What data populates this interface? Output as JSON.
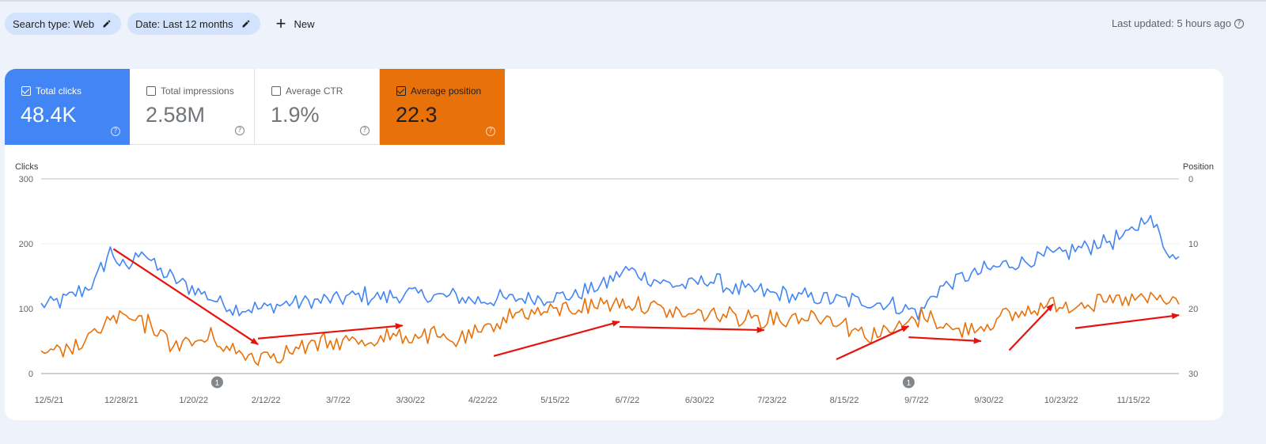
{
  "toolbar": {
    "search_type_label": "Search type: Web",
    "date_label": "Date: Last 12 months",
    "new_label": "New",
    "last_updated": "Last updated: 5 hours ago"
  },
  "metrics": [
    {
      "label": "Total clicks",
      "value": "48.4K",
      "checked": true,
      "color": "#4285f4"
    },
    {
      "label": "Total impressions",
      "value": "2.58M",
      "checked": false
    },
    {
      "label": "Average CTR",
      "value": "1.9%",
      "checked": false
    },
    {
      "label": "Average position",
      "value": "22.3",
      "checked": true,
      "color": "#e8710a"
    }
  ],
  "chart_data": {
    "type": "line",
    "left_axis_label": "Clicks",
    "right_axis_label": "Position",
    "left_ylim": [
      0,
      300
    ],
    "left_ticks": [
      "0",
      "100",
      "200",
      "300"
    ],
    "right_ylim": [
      30,
      0
    ],
    "right_ticks": [
      "0",
      "10",
      "20",
      "30"
    ],
    "x_tick_labels": [
      "12/5/21",
      "12/28/21",
      "1/20/22",
      "2/12/22",
      "3/7/22",
      "3/30/22",
      "4/22/22",
      "5/15/22",
      "6/7/22",
      "6/30/22",
      "7/23/22",
      "8/15/22",
      "9/7/22",
      "9/30/22",
      "10/23/22",
      "11/15/22"
    ],
    "annotations": [
      {
        "label": "1",
        "date_index": 56
      },
      {
        "label": "1",
        "date_index": 276
      }
    ],
    "grid": true,
    "series": [
      {
        "name": "Total clicks",
        "axis": "left",
        "color": "#4285f4",
        "x_start": "12/5/21",
        "x_end": "12/2/22",
        "points_per_day": 1,
        "keyframes": [
          [
            0,
            105
          ],
          [
            5,
            110
          ],
          [
            10,
            120
          ],
          [
            17,
            140
          ],
          [
            22,
            190
          ],
          [
            27,
            155
          ],
          [
            32,
            195
          ],
          [
            37,
            160
          ],
          [
            42,
            145
          ],
          [
            47,
            135
          ],
          [
            52,
            122
          ],
          [
            57,
            110
          ],
          [
            62,
            100
          ],
          [
            70,
            100
          ],
          [
            80,
            110
          ],
          [
            90,
            112
          ],
          [
            100,
            120
          ],
          [
            110,
            118
          ],
          [
            120,
            122
          ],
          [
            130,
            118
          ],
          [
            140,
            112
          ],
          [
            150,
            115
          ],
          [
            160,
            118
          ],
          [
            170,
            120
          ],
          [
            180,
            140
          ],
          [
            186,
            160
          ],
          [
            192,
            150
          ],
          [
            198,
            140
          ],
          [
            205,
            135
          ],
          [
            212,
            145
          ],
          [
            220,
            130
          ],
          [
            230,
            125
          ],
          [
            240,
            118
          ],
          [
            250,
            115
          ],
          [
            260,
            112
          ],
          [
            268,
            108
          ],
          [
            275,
            100
          ],
          [
            280,
            95
          ],
          [
            285,
            130
          ],
          [
            295,
            150
          ],
          [
            305,
            165
          ],
          [
            315,
            175
          ],
          [
            325,
            185
          ],
          [
            335,
            200
          ],
          [
            345,
            210
          ],
          [
            352,
            245
          ],
          [
            357,
            200
          ],
          [
            361,
            175
          ]
        ]
      },
      {
        "name": "Average position",
        "axis": "right",
        "color": "#e8710a",
        "x_start": "12/5/21",
        "x_end": "12/2/22",
        "points_per_day": 1,
        "keyframes": [
          [
            0,
            27.5
          ],
          [
            5,
            27
          ],
          [
            10,
            26
          ],
          [
            15,
            25
          ],
          [
            20,
            22
          ],
          [
            25,
            21.5
          ],
          [
            30,
            22
          ],
          [
            35,
            22.5
          ],
          [
            40,
            25
          ],
          [
            45,
            25.5
          ],
          [
            50,
            25
          ],
          [
            55,
            24.5
          ],
          [
            60,
            26.5
          ],
          [
            65,
            27.2
          ],
          [
            70,
            27
          ],
          [
            80,
            26.5
          ],
          [
            90,
            25.5
          ],
          [
            100,
            25
          ],
          [
            110,
            24.5
          ],
          [
            120,
            24
          ],
          [
            130,
            25
          ],
          [
            140,
            24
          ],
          [
            145,
            22
          ],
          [
            150,
            20.8
          ],
          [
            160,
            20.5
          ],
          [
            170,
            20
          ],
          [
            180,
            19
          ],
          [
            188,
            19
          ],
          [
            195,
            20
          ],
          [
            205,
            21
          ],
          [
            215,
            20.8
          ],
          [
            225,
            21
          ],
          [
            235,
            21.5
          ],
          [
            245,
            21
          ],
          [
            255,
            22
          ],
          [
            262,
            24
          ],
          [
            270,
            23.5
          ],
          [
            275,
            22.5
          ],
          [
            280,
            21
          ],
          [
            285,
            21.5
          ],
          [
            290,
            23.5
          ],
          [
            300,
            22.5
          ],
          [
            310,
            21
          ],
          [
            320,
            19.5
          ],
          [
            330,
            19
          ],
          [
            340,
            19
          ],
          [
            350,
            18.5
          ],
          [
            361,
            19
          ]
        ]
      }
    ],
    "arrows": [
      {
        "from": [
          "12/28/21",
          10.8
        ],
        "to": [
          "2/12/22",
          25.5
        ]
      },
      {
        "from": [
          "2/12/22",
          24.6
        ],
        "to": [
          "3/30/22",
          22.6
        ]
      },
      {
        "from": [
          "4/28/22",
          27.3
        ],
        "to": [
          "6/7/22",
          22.0
        ]
      },
      {
        "from": [
          "6/7/22",
          22.8
        ],
        "to": [
          "7/23/22",
          23.3
        ]
      },
      {
        "from": [
          "8/15/22",
          27.8
        ],
        "to": [
          "9/7/22",
          22.7
        ]
      },
      {
        "from": [
          "9/7/22",
          24.4
        ],
        "to": [
          "9/30/22",
          25.0
        ]
      },
      {
        "from": [
          "10/9/22",
          26.4
        ],
        "to": [
          "10/23/22",
          19.3
        ]
      },
      {
        "from": [
          "10/30/22",
          23.0
        ],
        "to": [
          "12/2/22",
          21.0
        ]
      }
    ],
    "arrow_color": "#e8120c"
  }
}
